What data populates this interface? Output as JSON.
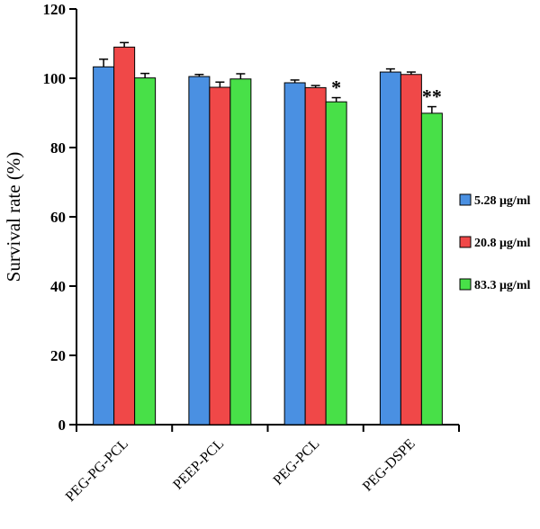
{
  "chart_data": {
    "type": "bar",
    "title": "",
    "xlabel": "",
    "ylabel": "Survival rate (%)",
    "ylim": [
      0,
      120
    ],
    "yticks": [
      0,
      20,
      40,
      60,
      80,
      100,
      120
    ],
    "grid": false,
    "legend_position": "right",
    "categories": [
      "PEG-PG-PCL",
      "PEEP-PCL",
      "PEG-PCL",
      "PEG-DSPE"
    ],
    "series": [
      {
        "name": "5.28 μg/ml",
        "color": "#4a90e2",
        "values": [
          103.3,
          100.5,
          98.7,
          101.8
        ],
        "errors": [
          2.2,
          0.6,
          0.8,
          0.9
        ]
      },
      {
        "name": "20.8 μg/ml",
        "color": "#f04848",
        "values": [
          109.0,
          97.4,
          97.3,
          101.1
        ],
        "errors": [
          1.3,
          1.5,
          0.6,
          0.7
        ]
      },
      {
        "name": "83.3 μg/ml",
        "color": "#48e048",
        "values": [
          100.1,
          99.8,
          93.2,
          89.9
        ],
        "errors": [
          1.3,
          1.5,
          1.2,
          1.9
        ]
      }
    ],
    "annotations": [
      {
        "category": "PEG-PCL",
        "series": "83.3 μg/ml",
        "text": "*"
      },
      {
        "category": "PEG-DSPE",
        "series": "83.3 μg/ml",
        "text": "**"
      }
    ]
  }
}
